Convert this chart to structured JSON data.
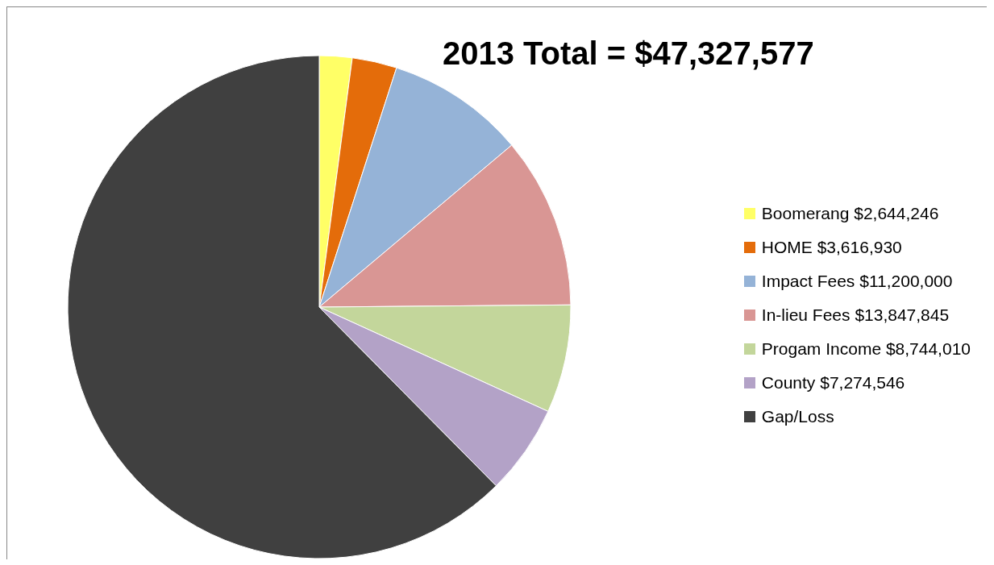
{
  "chart_data": {
    "type": "pie",
    "title": "2013 Total = $47,327,577",
    "categories": [
      "Boomerang $2,644,246",
      "HOME $3,616,930",
      "Impact Fees $11,200,000",
      "In-lieu Fees $13,847,845",
      "Progam Income $8,744,010",
      "County $7,274,546",
      "Gap/Loss"
    ],
    "values": [
      2644246,
      3616930,
      11200000,
      13847845,
      8744010,
      7274546,
      78600000
    ],
    "colors": [
      "#ffff66",
      "#e46c0a",
      "#95b3d7",
      "#d99694",
      "#c3d69b",
      "#b3a2c7",
      "#404040"
    ],
    "legend": "right"
  }
}
